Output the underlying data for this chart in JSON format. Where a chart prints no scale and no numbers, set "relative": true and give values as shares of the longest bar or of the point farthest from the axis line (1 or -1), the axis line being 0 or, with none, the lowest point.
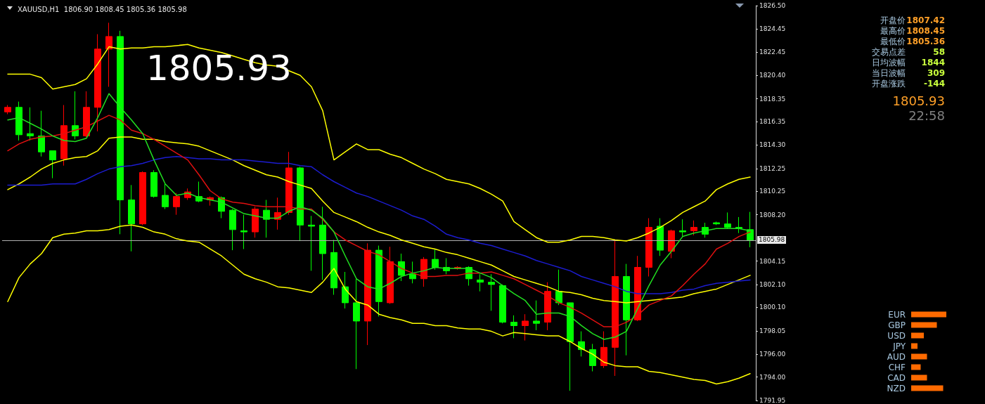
{
  "chart_data": [
    {
      "type": "candlestick",
      "title": "XAUUSD,H1  1806.90 1808.45 1805.36 1805.98",
      "tick_labels": "y",
      "categories": [
        null,
        null,
        null,
        null,
        null,
        null,
        null,
        null,
        null,
        null,
        null,
        null,
        null,
        null,
        null,
        null,
        null,
        null,
        null,
        null,
        null,
        null,
        null,
        null,
        null,
        null,
        null,
        null,
        null,
        null,
        null,
        null,
        null,
        null,
        null,
        null,
        null,
        null,
        null,
        null,
        null,
        null,
        null,
        null,
        null,
        null,
        null,
        null,
        null,
        null,
        null,
        null,
        null,
        null,
        null,
        null,
        null,
        null,
        null,
        null,
        null,
        null,
        null,
        null,
        null,
        null,
        null
      ],
      "ohlc": [
        [
          1817.2,
          1817.8,
          1817.0,
          1817.6
        ],
        [
          1817.6,
          1818.1,
          1814.7,
          1815.2
        ],
        [
          1815.3,
          1817.6,
          1814.7,
          1815.1
        ],
        [
          1815.1,
          1817.3,
          1813.3,
          1813.7
        ],
        [
          1813.8,
          1813.8,
          1811.4,
          1813.0
        ],
        [
          1813.1,
          1817.8,
          1812.5,
          1816.0
        ],
        [
          1816.0,
          1819.0,
          1814.8,
          1815.1
        ],
        [
          1815.1,
          1819.0,
          1815.0,
          1817.6
        ],
        [
          1817.6,
          1824.0,
          1815.5,
          1822.7
        ],
        [
          1822.7,
          1825.0,
          1819.4,
          1823.8
        ],
        [
          1823.8,
          1824.3,
          1806.5,
          1809.5
        ],
        [
          1809.5,
          1810.8,
          1805.0,
          1807.4
        ],
        [
          1807.4,
          1812.0,
          1807.3,
          1811.9
        ],
        [
          1811.9,
          1812.1,
          1809.7,
          1809.8
        ],
        [
          1809.9,
          1810.9,
          1808.7,
          1808.9
        ],
        [
          1808.9,
          1810.1,
          1808.2,
          1809.8
        ],
        [
          1809.7,
          1810.5,
          1809.5,
          1810.2
        ],
        [
          1809.8,
          1811.1,
          1809.3,
          1809.4
        ],
        [
          1809.5,
          1809.8,
          1809.0,
          1809.7
        ],
        [
          1809.7,
          1809.8,
          1807.9,
          1808.5
        ],
        [
          1808.6,
          1808.7,
          1805.1,
          1806.9
        ],
        [
          1806.8,
          1808.2,
          1805.2,
          1806.7
        ],
        [
          1806.7,
          1808.9,
          1806.2,
          1808.7
        ],
        [
          1808.6,
          1809.5,
          1806.2,
          1807.8
        ],
        [
          1807.8,
          1809.7,
          1806.9,
          1808.4
        ],
        [
          1808.4,
          1813.7,
          1808.2,
          1812.3
        ],
        [
          1812.3,
          1812.4,
          1805.9,
          1807.3
        ],
        [
          1807.3,
          1808.1,
          1803.3,
          1807.2
        ],
        [
          1807.3,
          1808.9,
          1802.5,
          1804.8
        ],
        [
          1804.9,
          1806.0,
          1801.2,
          1801.8
        ],
        [
          1801.9,
          1803.2,
          1800.0,
          1800.5
        ],
        [
          1800.5,
          1802.7,
          1794.7,
          1798.9
        ],
        [
          1798.9,
          1805.7,
          1796.8,
          1805.1
        ],
        [
          1805.1,
          1805.5,
          1799.3,
          1800.6
        ],
        [
          1800.5,
          1805.4,
          1800.4,
          1804.1
        ],
        [
          1804.1,
          1804.8,
          1802.4,
          1802.9
        ],
        [
          1803.0,
          1804.1,
          1802.2,
          1802.6
        ],
        [
          1802.6,
          1804.5,
          1801.9,
          1804.3
        ],
        [
          1804.3,
          1805.2,
          1803.4,
          1803.6
        ],
        [
          1803.6,
          1804.4,
          1803.0,
          1803.3
        ],
        [
          1803.5,
          1803.7,
          1803.4,
          1803.6
        ],
        [
          1803.6,
          1803.7,
          1802.0,
          1802.6
        ],
        [
          1802.5,
          1803.0,
          1801.5,
          1802.3
        ],
        [
          1802.3,
          1803.0,
          1799.8,
          1802.1
        ],
        [
          1802.0,
          1802.1,
          1798.7,
          1798.8
        ],
        [
          1798.8,
          1799.4,
          1797.4,
          1798.5
        ],
        [
          1798.5,
          1799.5,
          1797.2,
          1798.9
        ],
        [
          1798.9,
          1800.7,
          1798.1,
          1798.7
        ],
        [
          1798.8,
          1802.3,
          1798.1,
          1801.5
        ],
        [
          1801.5,
          1803.4,
          1800.3,
          1800.5
        ],
        [
          1800.5,
          1800.5,
          1792.8,
          1797.1
        ],
        [
          1797.1,
          1798.0,
          1795.8,
          1796.4
        ],
        [
          1796.4,
          1796.9,
          1794.5,
          1795.0
        ],
        [
          1795.0,
          1798.0,
          1794.8,
          1796.6
        ],
        [
          1796.6,
          1806.0,
          1794.1,
          1802.8
        ],
        [
          1802.8,
          1803.9,
          1795.9,
          1799.0
        ],
        [
          1799.0,
          1804.6,
          1798.9,
          1803.6
        ],
        [
          1803.6,
          1807.9,
          1802.8,
          1807.1
        ],
        [
          1807.2,
          1807.9,
          1804.6,
          1805.1
        ],
        [
          1805.0,
          1806.9,
          1804.4,
          1806.8
        ],
        [
          1806.8,
          1807.8,
          1806.3,
          1806.7
        ],
        [
          1806.8,
          1807.7,
          1806.4,
          1807.1
        ],
        [
          1807.1,
          1807.5,
          1806.2,
          1806.5
        ],
        [
          1807.5,
          1807.6,
          1807.3,
          1807.4
        ],
        [
          1807.4,
          1808.4,
          1807.0,
          1807.1
        ],
        [
          1807.1,
          1808.0,
          1806.6,
          1807.0
        ],
        [
          1806.9,
          1808.45,
          1805.36,
          1805.98
        ]
      ],
      "colors": [
        "#ff0000",
        "#00ff00",
        "#00ff00",
        "#00ff00",
        "#00ff00",
        "#ff0000",
        "#00ff00",
        "#ff0000",
        "#ff0000",
        "#ff0000",
        "#00ff00",
        "#00ff00",
        "#ff0000",
        "#00ff00",
        "#00ff00",
        "#ff0000",
        "#ff0000",
        "#00ff00",
        "#ff0000",
        "#00ff00",
        "#00ff00",
        "#00ff00",
        "#ff0000",
        "#00ff00",
        "#ff0000",
        "#ff0000",
        "#00ff00",
        "#00ff00",
        "#00ff00",
        "#00ff00",
        "#00ff00",
        "#00ff00",
        "#ff0000",
        "#00ff00",
        "#ff0000",
        "#00ff00",
        "#00ff00",
        "#ff0000",
        "#00ff00",
        "#00ff00",
        "#ff0000",
        "#00ff00",
        "#00ff00",
        "#00ff00",
        "#00ff00",
        "#00ff00",
        "#ff0000",
        "#00ff00",
        "#ff0000",
        "#00ff00",
        "#00ff00",
        "#00ff00",
        "#00ff00",
        "#ff0000",
        "#ff0000",
        "#00ff00",
        "#ff0000",
        "#ff0000",
        "#00ff00",
        "#ff0000",
        "#00ff00",
        "#ff0000",
        "#00ff00",
        "#00ff00",
        "#00ff00",
        "#00ff00",
        "#00ff00"
      ],
      "ylim": [
        1791.95,
        1826.5
      ],
      "yticks": [
        {
          "value": 1791.95,
          "label": "1791.95"
        },
        {
          "value": 1794,
          "label": "1794.00"
        },
        {
          "value": 1796,
          "label": "1796.00"
        },
        {
          "value": 1798.05,
          "label": "1798.05"
        },
        {
          "value": 1800.1,
          "label": "1800.10"
        },
        {
          "value": 1802.1,
          "label": "1802.10"
        },
        {
          "value": 1804.15,
          "label": "1804.15"
        },
        {
          "value": 1808.2,
          "label": "1808.20"
        },
        {
          "value": 1810.25,
          "label": "1810.25"
        },
        {
          "value": 1812.25,
          "label": "1812.25"
        },
        {
          "value": 1814.3,
          "label": "1814.30"
        },
        {
          "value": 1816.35,
          "label": "1816.35"
        },
        {
          "value": 1818.35,
          "label": "1818.35"
        },
        {
          "value": 1820.4,
          "label": "1820.40"
        },
        {
          "value": 1822.45,
          "label": "1822.45"
        },
        {
          "value": 1824.45,
          "label": "1824.45"
        },
        {
          "value": 1826.5,
          "label": "1826.50"
        }
      ],
      "ref_lines": [
        {
          "axis": "y",
          "value": 1805.98,
          "label": "1805.98",
          "color": "#b0b0b0"
        }
      ],
      "annotations": [
        "1805.93",
        "开盘价",
        "1807.42",
        "最高价",
        "1808.45",
        "最低价",
        "1805.36",
        "交易点差",
        "58",
        "日均波幅",
        "1844",
        "当日波幅",
        "309",
        "开盘涨跌",
        "-144",
        "1805.93",
        "22:58"
      ]
    },
    {
      "type": "line",
      "marker": "none",
      "tick_labels": false,
      "categories": [
        null,
        null,
        null,
        null,
        null,
        null,
        null,
        null,
        null,
        null,
        null,
        null,
        null,
        null,
        null,
        null,
        null,
        null,
        null,
        null,
        null,
        null,
        null,
        null,
        null,
        null,
        null,
        null,
        null,
        null,
        null,
        null,
        null,
        null,
        null,
        null,
        null,
        null,
        null,
        null,
        null,
        null,
        null,
        null,
        null,
        null,
        null,
        null,
        null,
        null,
        null,
        null,
        null,
        null,
        null,
        null,
        null,
        null,
        null,
        null,
        null,
        null,
        null,
        null,
        null,
        null,
        null
      ],
      "ylim": [
        1791.95,
        1826.5
      ],
      "series": [
        {
          "type": "line",
          "color": "#ffff00",
          "values": [
            1820.5,
            1820.5,
            1820.5,
            1820.2,
            1819.2,
            1819.4,
            1819.6,
            1820.1,
            1821.4,
            1822.9,
            1822.7,
            1822.8,
            1822.8,
            1822.9,
            1822.9,
            1823.0,
            1823.1,
            1822.8,
            1822.6,
            1822.4,
            1822.1,
            1821.8,
            1821.5,
            1821.3,
            1821.2,
            1820.8,
            1820.4,
            1819.4,
            1817.3,
            1813.0,
            1813.7,
            1814.4,
            1813.9,
            1813.9,
            1813.5,
            1813.2,
            1812.7,
            1812.2,
            1811.8,
            1811.3,
            1811.1,
            1810.9,
            1810.5,
            1810.0,
            1809.4,
            1807.6,
            1806.9,
            1806.2,
            1805.8,
            1805.8,
            1806.0,
            1806.3,
            1806.3,
            1806.2,
            1806.0,
            1805.9,
            1806.2,
            1806.6,
            1807.1,
            1807.7,
            1808.4,
            1808.9,
            1809.4,
            1810.4,
            1810.9,
            1811.3,
            1811.5
          ]
        },
        {
          "type": "line",
          "color": "#ffff00",
          "values": [
            1810.4,
            1810.9,
            1811.5,
            1812.2,
            1812.7,
            1813.0,
            1813.2,
            1813.3,
            1813.8,
            1814.9,
            1815.0,
            1815.0,
            1814.8,
            1814.8,
            1814.6,
            1814.5,
            1814.4,
            1814.2,
            1813.8,
            1813.4,
            1813.0,
            1812.5,
            1812.1,
            1811.7,
            1811.5,
            1811.1,
            1810.8,
            1810.5,
            1809.4,
            1808.4,
            1808.0,
            1807.6,
            1807.1,
            1806.7,
            1806.4,
            1806.0,
            1805.7,
            1805.4,
            1805.2,
            1804.9,
            1804.7,
            1804.4,
            1804.1,
            1803.8,
            1803.3,
            1802.8,
            1802.5,
            1802.2,
            1801.9,
            1801.5,
            1801.4,
            1801.2,
            1800.9,
            1800.7,
            1800.6,
            1800.5,
            1800.6,
            1800.7,
            1800.8,
            1800.9,
            1801.0,
            1801.3,
            1801.5,
            1801.7,
            1802.1,
            1802.5,
            1802.9
          ]
        },
        {
          "type": "line",
          "color": "#ffff00",
          "values": [
            1800.6,
            1802.7,
            1803.9,
            1804.8,
            1806.2,
            1806.5,
            1806.6,
            1806.8,
            1806.8,
            1806.9,
            1807.2,
            1807.3,
            1807.1,
            1806.7,
            1806.5,
            1806.1,
            1805.9,
            1805.8,
            1805.2,
            1804.6,
            1803.8,
            1803.0,
            1802.6,
            1802.3,
            1801.9,
            1801.8,
            1801.6,
            1801.4,
            1802.3,
            1803.5,
            1801.7,
            1800.6,
            1800.3,
            1799.5,
            1799.2,
            1799.0,
            1798.7,
            1798.7,
            1798.5,
            1798.5,
            1798.3,
            1798.2,
            1798.2,
            1798.0,
            1797.6,
            1797.9,
            1797.8,
            1797.7,
            1797.6,
            1797.6,
            1797.1,
            1796.5,
            1796.0,
            1795.3,
            1795.0,
            1794.9,
            1794.9,
            1794.5,
            1794.4,
            1794.2,
            1794.0,
            1793.8,
            1793.7,
            1793.4,
            1793.6,
            1793.9,
            1794.3
          ]
        },
        {
          "type": "line",
          "color": "#1c1cd0",
          "values": [
            1810.8,
            1810.8,
            1810.8,
            1810.8,
            1810.9,
            1810.9,
            1810.9,
            1811.3,
            1811.8,
            1812.2,
            1812.4,
            1812.5,
            1812.7,
            1813.0,
            1813.2,
            1813.3,
            1813.2,
            1813.1,
            1813.1,
            1813.0,
            1813.0,
            1813.0,
            1812.9,
            1812.8,
            1812.7,
            1812.7,
            1812.5,
            1812.4,
            1811.7,
            1811.1,
            1810.6,
            1810.1,
            1809.8,
            1809.4,
            1809.0,
            1808.6,
            1808.1,
            1807.8,
            1807.2,
            1806.5,
            1806.2,
            1806.0,
            1805.7,
            1805.5,
            1805.2,
            1804.9,
            1804.6,
            1804.2,
            1803.9,
            1803.6,
            1803.3,
            1802.8,
            1802.5,
            1802.2,
            1801.9,
            1801.5,
            1801.3,
            1801.3,
            1801.3,
            1801.4,
            1801.6,
            1801.7,
            1802.0,
            1802.2,
            1802.3,
            1802.4,
            1802.5
          ]
        },
        {
          "type": "line",
          "color": "#e01010",
          "values": [
            1813.8,
            1814.4,
            1814.8,
            1815.0,
            1815.1,
            1815.3,
            1815.6,
            1815.9,
            1816.4,
            1816.9,
            1816.5,
            1815.6,
            1815.3,
            1814.8,
            1814.2,
            1813.6,
            1813.0,
            1811.7,
            1810.3,
            1809.6,
            1809.3,
            1809.2,
            1809.0,
            1808.9,
            1808.9,
            1808.9,
            1808.7,
            1808.7,
            1807.8,
            1806.7,
            1806.0,
            1805.5,
            1805.0,
            1804.7,
            1804.1,
            1803.5,
            1803.1,
            1802.8,
            1802.8,
            1802.9,
            1802.9,
            1803.1,
            1803.1,
            1803.2,
            1802.9,
            1802.6,
            1802.1,
            1801.6,
            1801.1,
            1800.5,
            1800.1,
            1799.6,
            1799.0,
            1798.4,
            1798.4,
            1798.8,
            1799.4,
            1800.3,
            1800.7,
            1801.1,
            1802.0,
            1803.0,
            1803.9,
            1805.2,
            1805.7,
            1806.3,
            1806.7
          ]
        },
        {
          "type": "line",
          "color": "#20e020",
          "values": [
            1816.5,
            1816.7,
            1816.2,
            1815.7,
            1815.1,
            1814.7,
            1814.6,
            1814.9,
            1816.7,
            1818.8,
            1817.6,
            1816.5,
            1815.3,
            1813.0,
            1810.9,
            1809.9,
            1810.1,
            1809.7,
            1809.5,
            1809.3,
            1808.8,
            1808.3,
            1808.1,
            1807.9,
            1807.9,
            1808.5,
            1808.9,
            1808.6,
            1807.9,
            1806.7,
            1804.6,
            1802.6,
            1801.9,
            1801.7,
            1802.2,
            1802.8,
            1803.1,
            1803.3,
            1803.6,
            1803.5,
            1803.5,
            1803.5,
            1803.1,
            1802.7,
            1802.0,
            1801.3,
            1800.7,
            1799.5,
            1799.6,
            1799.6,
            1799.3,
            1798.5,
            1797.8,
            1797.3,
            1797.5,
            1798.0,
            1800.0,
            1802.0,
            1803.8,
            1805.0,
            1806.3,
            1806.6,
            1806.8,
            1807.0,
            1807.0,
            1807.0,
            1806.8
          ]
        }
      ]
    },
    {
      "type": "bar",
      "orientation": "horizontal",
      "relative": true,
      "color": "#ff6a00",
      "categories": [
        "EUR",
        "GBP",
        "USD",
        "JPY",
        "AUD",
        "CHF",
        "CAD",
        "NZD"
      ],
      "values": [
        1,
        0.73,
        0.36,
        0.18,
        0.45,
        0.27,
        0.45,
        0.91
      ]
    }
  ]
}
